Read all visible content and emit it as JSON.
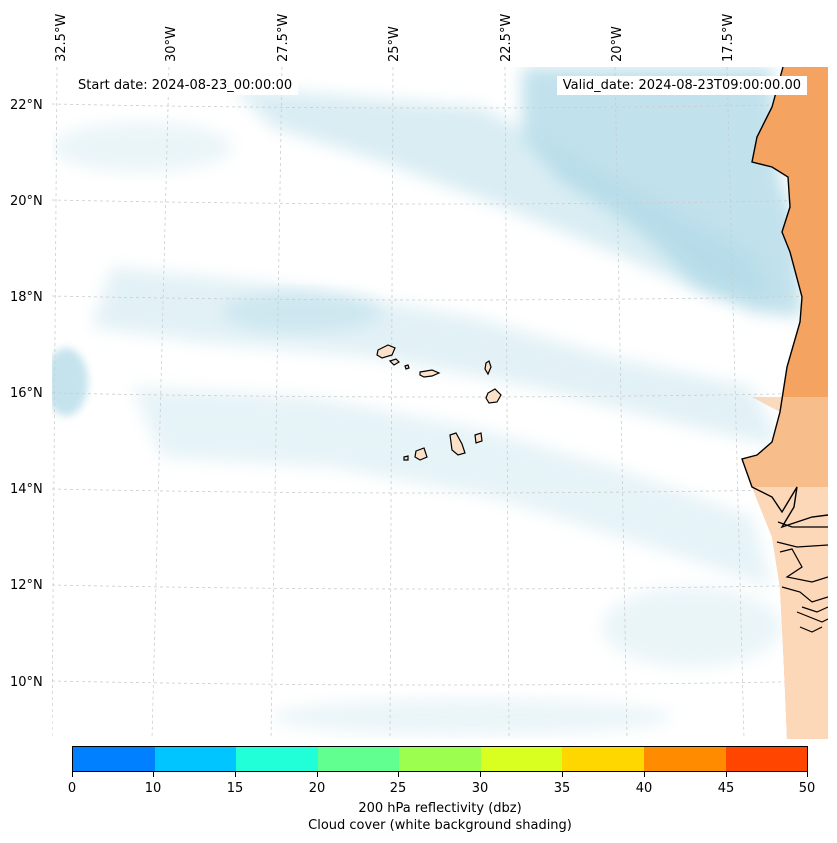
{
  "map": {
    "longitude_labels": [
      "32.5°W",
      "30°W",
      "27.5°W",
      "25°W",
      "22.5°W",
      "20°W",
      "17.5°W"
    ],
    "latitude_labels": [
      "22°N",
      "20°N",
      "18°N",
      "16°N",
      "14°N",
      "12°N",
      "10°N"
    ],
    "start_date": "Start date: 2024-08-23_00:00:00",
    "valid_date": "Valid_date: 2024-08-23T09:00:00.00",
    "colors": {
      "cloud": "#add8e6",
      "land_reflectivity": "#f4a460",
      "island_fill": "#fde0c8",
      "coastline": "#000000",
      "gridline": "#cccccc"
    }
  },
  "colorbar": {
    "ticks": [
      "0",
      "10",
      "15",
      "20",
      "25",
      "30",
      "35",
      "40",
      "45",
      "50"
    ],
    "colors": [
      "#0080ff",
      "#00c5ff",
      "#20ffd8",
      "#60ff90",
      "#9cff50",
      "#d8ff20",
      "#ffd700",
      "#ff8c00",
      "#ff4500"
    ],
    "label_line1": "200 hPa reflectivity (dbz)",
    "label_line2": "Cloud cover (white background shading)"
  }
}
